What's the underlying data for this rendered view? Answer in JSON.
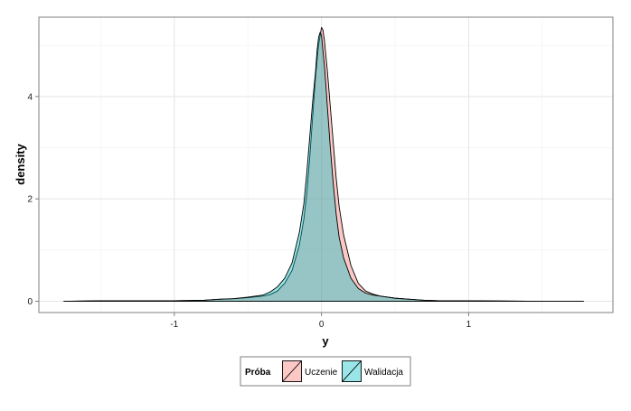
{
  "chart_data": {
    "type": "area",
    "xlabel": "y",
    "ylabel": "density",
    "xlim": [
      -1.92,
      1.98
    ],
    "ylim": [
      -0.22,
      5.55
    ],
    "x_ticks": [
      -1,
      0,
      1
    ],
    "x_tick_labels": [
      "-1",
      "0",
      "1"
    ],
    "y_ticks": [
      0,
      2,
      4
    ],
    "y_tick_labels": [
      "0",
      "2",
      "4"
    ],
    "grid": true,
    "legend": {
      "title": "Próba",
      "position": "bottom"
    },
    "series": [
      {
        "name": "Uczenie",
        "color": "#F8766D",
        "fill_opacity": 0.4,
        "x": [
          -1.75,
          -1.5,
          -1.0,
          -0.8,
          -0.7,
          -0.6,
          -0.5,
          -0.4,
          -0.35,
          -0.3,
          -0.25,
          -0.2,
          -0.15,
          -0.12,
          -0.1,
          -0.08,
          -0.06,
          -0.04,
          -0.02,
          0.0,
          0.01,
          0.02,
          0.04,
          0.06,
          0.08,
          0.1,
          0.12,
          0.15,
          0.2,
          0.25,
          0.3,
          0.35,
          0.4,
          0.5,
          0.6,
          0.7,
          0.8,
          1.0,
          1.5,
          1.78
        ],
        "y": [
          0.0,
          0.01,
          0.01,
          0.02,
          0.04,
          0.05,
          0.07,
          0.1,
          0.13,
          0.2,
          0.35,
          0.6,
          1.1,
          1.6,
          2.1,
          2.8,
          3.6,
          4.4,
          5.0,
          5.35,
          5.3,
          5.1,
          4.5,
          3.8,
          3.1,
          2.4,
          1.85,
          1.3,
          0.7,
          0.35,
          0.2,
          0.14,
          0.1,
          0.06,
          0.04,
          0.02,
          0.01,
          0.01,
          0.0,
          0.0
        ]
      },
      {
        "name": "Walidacja",
        "color": "#00BFC4",
        "fill_opacity": 0.4,
        "x": [
          -1.75,
          -1.5,
          -1.0,
          -0.8,
          -0.7,
          -0.6,
          -0.5,
          -0.4,
          -0.35,
          -0.3,
          -0.25,
          -0.2,
          -0.15,
          -0.12,
          -0.1,
          -0.08,
          -0.06,
          -0.04,
          -0.03,
          -0.02,
          -0.01,
          0.0,
          0.02,
          0.04,
          0.06,
          0.08,
          0.1,
          0.12,
          0.15,
          0.2,
          0.25,
          0.3,
          0.35,
          0.4,
          0.5,
          0.6,
          0.7,
          0.8,
          1.0,
          1.5,
          1.78
        ],
        "y": [
          0.0,
          0.01,
          0.01,
          0.02,
          0.04,
          0.05,
          0.08,
          0.12,
          0.18,
          0.28,
          0.45,
          0.75,
          1.35,
          1.9,
          2.5,
          3.2,
          3.9,
          4.5,
          4.9,
          5.15,
          5.25,
          5.2,
          4.6,
          3.8,
          3.0,
          2.3,
          1.7,
          1.25,
          0.85,
          0.45,
          0.25,
          0.16,
          0.12,
          0.1,
          0.06,
          0.04,
          0.02,
          0.01,
          0.01,
          0.0,
          0.0
        ]
      }
    ]
  }
}
